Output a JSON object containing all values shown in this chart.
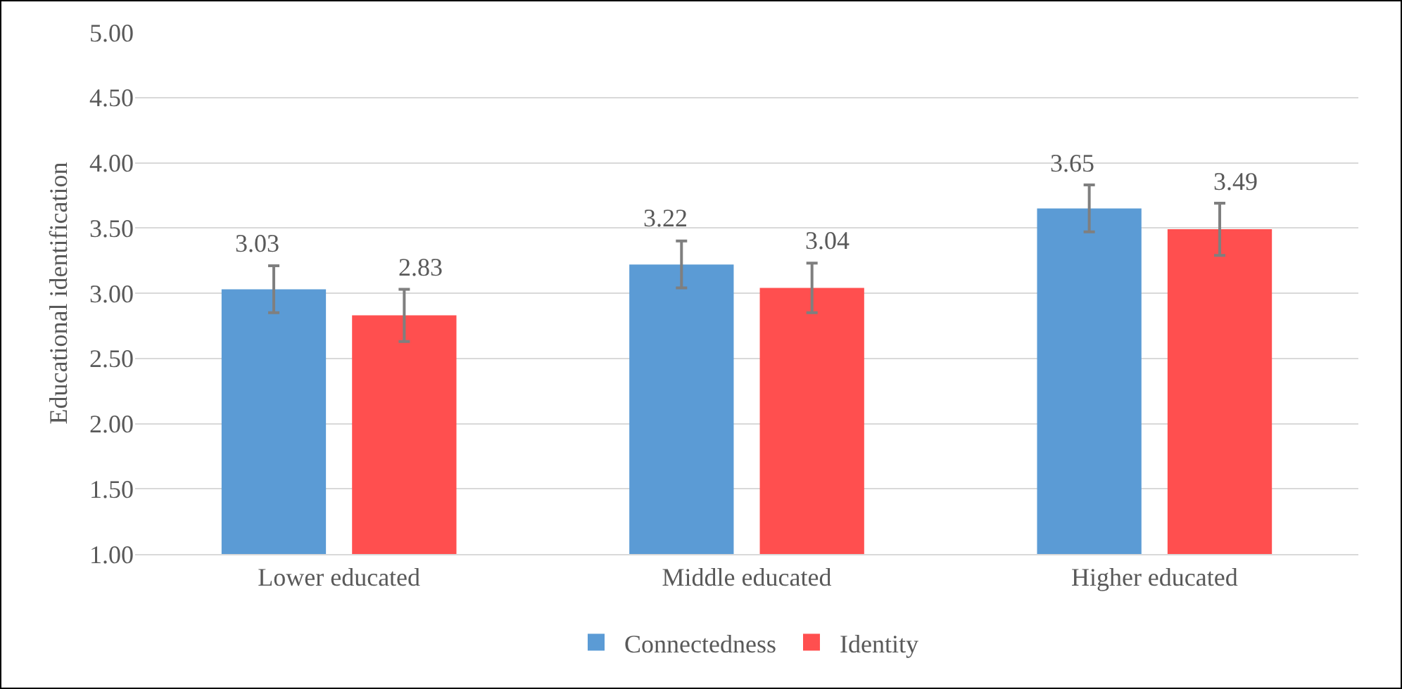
{
  "chart_data": {
    "type": "bar",
    "ylabel": "Educational identification",
    "categories": [
      "Lower educated",
      "Middle educated",
      "Higher educated"
    ],
    "series": [
      {
        "name": "Connectedness",
        "color": "#5b9bd5",
        "values": [
          3.03,
          3.22,
          3.65
        ],
        "errors": [
          0.18,
          0.18,
          0.18
        ]
      },
      {
        "name": "Identity",
        "color": "#ff4f4f",
        "values": [
          2.83,
          3.04,
          3.49
        ],
        "errors": [
          0.2,
          0.19,
          0.2
        ]
      }
    ],
    "ylim": [
      1,
      5
    ],
    "yticks": [
      {
        "value": 1,
        "label": "1.00"
      },
      {
        "value": 1.5,
        "label": "1.50"
      },
      {
        "value": 2,
        "label": "2.00"
      },
      {
        "value": 2.5,
        "label": "2.50"
      },
      {
        "value": 3,
        "label": "3.00"
      },
      {
        "value": 3.5,
        "label": "3.50"
      },
      {
        "value": 4,
        "label": "4.00"
      },
      {
        "value": 4.5,
        "label": "4.50"
      },
      {
        "value": 5,
        "label": "5.00"
      }
    ],
    "grid": "y",
    "legend": "bottom",
    "data_labels": true
  }
}
